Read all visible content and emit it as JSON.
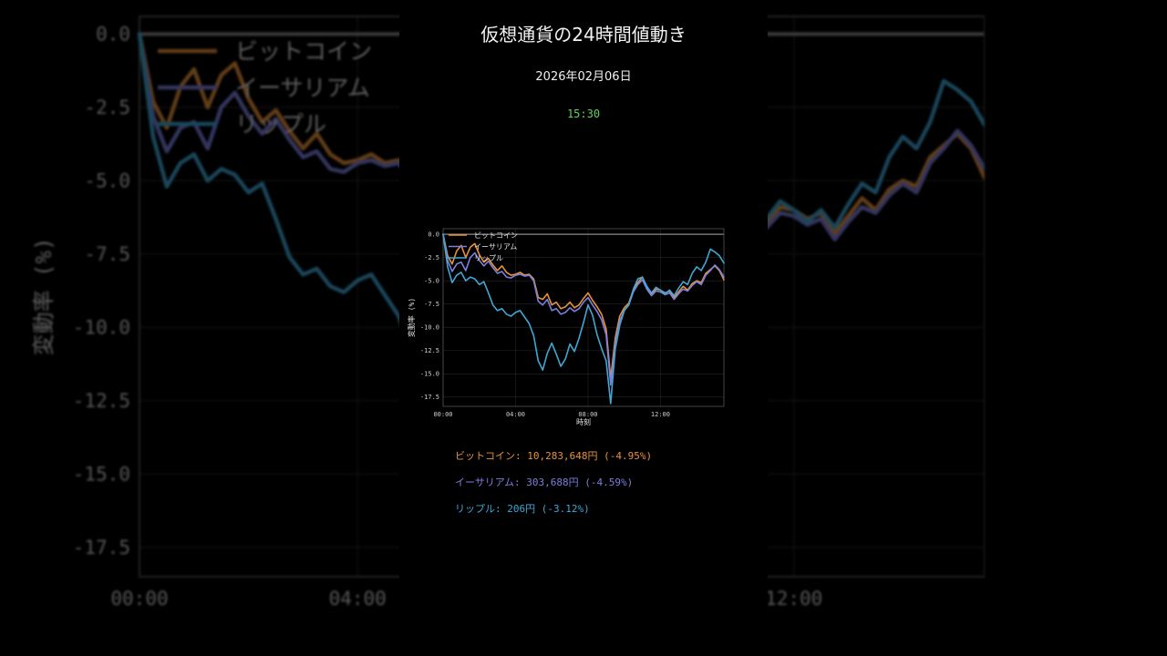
{
  "header": {
    "title": "仮想通貨の24時間値動き",
    "date": "2026年02月06日",
    "time": "15:30"
  },
  "colors": {
    "background": "#000000",
    "time": "#5fd35f",
    "bitcoin": "#e8913a",
    "ethereum": "#7b7fe0",
    "ripple": "#3fa7d6"
  },
  "prices": [
    {
      "label": "ビットコイン: 10,283,648円 (-4.95%)",
      "color": "#e8913a"
    },
    {
      "label": "イーサリアム: 303,688円 (-4.59%)",
      "color": "#7b7fe0"
    },
    {
      "label": "リップル: 206円 (-3.12%)",
      "color": "#3fa7d6"
    }
  ],
  "chart_data": {
    "type": "line",
    "xlabel": "時刻",
    "ylabel": "変動率 (%)",
    "xlim": [
      0,
      15.5
    ],
    "ylim": [
      -18.5,
      0.6
    ],
    "x_ticks": [
      0,
      4,
      8,
      12
    ],
    "x_tick_labels": [
      "00:00",
      "04:00",
      "08:00",
      "12:00"
    ],
    "y_ticks": [
      0,
      -2.5,
      -5,
      -7.5,
      -10,
      -12.5,
      -15,
      -17.5
    ],
    "y_tick_labels": [
      "0.0",
      "-2.5",
      "-5.0",
      "-7.5",
      "-10.0",
      "-12.5",
      "-15.0",
      "-17.5"
    ],
    "grid": true,
    "legend": "top-left",
    "zero_line": true,
    "series": [
      {
        "name": "ビットコイン",
        "color": "#e8913a",
        "x": [
          0,
          0.25,
          0.5,
          0.75,
          1,
          1.25,
          1.5,
          1.75,
          2,
          2.25,
          2.5,
          2.75,
          3,
          3.25,
          3.5,
          3.75,
          4,
          4.25,
          4.5,
          4.75,
          5,
          5.25,
          5.5,
          5.75,
          6,
          6.25,
          6.5,
          6.75,
          7,
          7.25,
          7.5,
          7.75,
          8,
          8.25,
          8.5,
          8.75,
          9,
          9.25,
          9.5,
          9.75,
          10,
          10.25,
          10.5,
          10.75,
          11,
          11.25,
          11.5,
          11.75,
          12,
          12.25,
          12.5,
          12.75,
          13,
          13.25,
          13.5,
          13.75,
          14,
          14.25,
          14.5,
          14.75,
          15,
          15.25,
          15.5
        ],
        "y": [
          0,
          -2.3,
          -3.2,
          -1.8,
          -1.2,
          -2.5,
          -1.4,
          -1.0,
          -2.2,
          -3.0,
          -2.6,
          -3.3,
          -3.9,
          -3.4,
          -4.1,
          -4.4,
          -4.3,
          -4.1,
          -4.4,
          -4.3,
          -4.8,
          -6.8,
          -7.0,
          -6.4,
          -7.6,
          -7.3,
          -8.0,
          -7.8,
          -7.3,
          -7.9,
          -7.6,
          -6.9,
          -6.3,
          -7.1,
          -7.8,
          -8.6,
          -10.2,
          -15.5,
          -11.2,
          -8.8,
          -7.9,
          -7.4,
          -6.0,
          -5.2,
          -4.6,
          -5.7,
          -6.4,
          -5.9,
          -6.0,
          -6.3,
          -6.1,
          -6.8,
          -6.2,
          -5.6,
          -6.0,
          -5.3,
          -5.0,
          -5.2,
          -4.2,
          -3.8,
          -3.4,
          -3.9,
          -4.9
        ]
      },
      {
        "name": "イーサリアム",
        "color": "#7b7fe0",
        "x": [
          0,
          0.25,
          0.5,
          0.75,
          1,
          1.25,
          1.5,
          1.75,
          2,
          2.25,
          2.5,
          2.75,
          3,
          3.25,
          3.5,
          3.75,
          4,
          4.25,
          4.5,
          4.75,
          5,
          5.25,
          5.5,
          5.75,
          6,
          6.25,
          6.5,
          6.75,
          7,
          7.25,
          7.5,
          7.75,
          8,
          8.25,
          8.5,
          8.75,
          9,
          9.25,
          9.5,
          9.75,
          10,
          10.25,
          10.5,
          10.75,
          11,
          11.25,
          11.5,
          11.75,
          12,
          12.25,
          12.5,
          12.75,
          13,
          13.25,
          13.5,
          13.75,
          14,
          14.25,
          14.5,
          14.75,
          15,
          15.25,
          15.5
        ],
        "y": [
          0,
          -2.8,
          -4.0,
          -3.2,
          -3.0,
          -3.9,
          -2.5,
          -2.0,
          -2.8,
          -3.4,
          -2.9,
          -3.6,
          -4.2,
          -4.0,
          -4.6,
          -4.7,
          -4.4,
          -4.3,
          -4.5,
          -4.4,
          -5.0,
          -7.2,
          -7.6,
          -7.0,
          -8.2,
          -8.0,
          -8.6,
          -8.4,
          -7.9,
          -8.3,
          -8.0,
          -7.3,
          -6.8,
          -7.6,
          -8.3,
          -9.2,
          -10.8,
          -16.2,
          -11.8,
          -9.3,
          -8.2,
          -7.6,
          -6.2,
          -5.4,
          -4.9,
          -5.9,
          -6.6,
          -6.1,
          -6.2,
          -6.5,
          -6.3,
          -7.0,
          -6.4,
          -5.9,
          -6.1,
          -5.5,
          -5.1,
          -5.4,
          -4.4,
          -3.9,
          -3.3,
          -3.8,
          -4.6
        ]
      },
      {
        "name": "リップル",
        "color": "#3fa7d6",
        "x": [
          0,
          0.25,
          0.5,
          0.75,
          1,
          1.25,
          1.5,
          1.75,
          2,
          2.25,
          2.5,
          2.75,
          3,
          3.25,
          3.5,
          3.75,
          4,
          4.25,
          4.5,
          4.75,
          5,
          5.25,
          5.5,
          5.75,
          6,
          6.25,
          6.5,
          6.75,
          7,
          7.25,
          7.5,
          7.75,
          8,
          8.25,
          8.5,
          8.75,
          9,
          9.25,
          9.5,
          9.75,
          10,
          10.25,
          10.5,
          10.75,
          11,
          11.25,
          11.5,
          11.75,
          12,
          12.25,
          12.5,
          12.75,
          13,
          13.25,
          13.5,
          13.75,
          14,
          14.25,
          14.5,
          14.75,
          15,
          15.25,
          15.5
        ],
        "y": [
          0,
          -3.5,
          -5.2,
          -4.4,
          -4.1,
          -5.0,
          -4.6,
          -4.8,
          -5.4,
          -5.1,
          -6.3,
          -7.6,
          -8.2,
          -8.0,
          -8.6,
          -8.8,
          -8.4,
          -8.2,
          -8.9,
          -9.6,
          -10.9,
          -13.6,
          -14.6,
          -12.8,
          -11.7,
          -12.9,
          -14.2,
          -13.4,
          -11.8,
          -12.6,
          -11.2,
          -9.5,
          -7.6,
          -8.7,
          -10.8,
          -12.3,
          -13.6,
          -18.2,
          -12.4,
          -9.8,
          -8.2,
          -7.6,
          -5.9,
          -4.8,
          -4.6,
          -5.6,
          -6.3,
          -5.7,
          -6.0,
          -6.4,
          -6.0,
          -6.6,
          -5.8,
          -5.1,
          -5.4,
          -4.2,
          -3.5,
          -3.9,
          -3.0,
          -1.6,
          -1.9,
          -2.3,
          -3.1
        ]
      }
    ]
  }
}
